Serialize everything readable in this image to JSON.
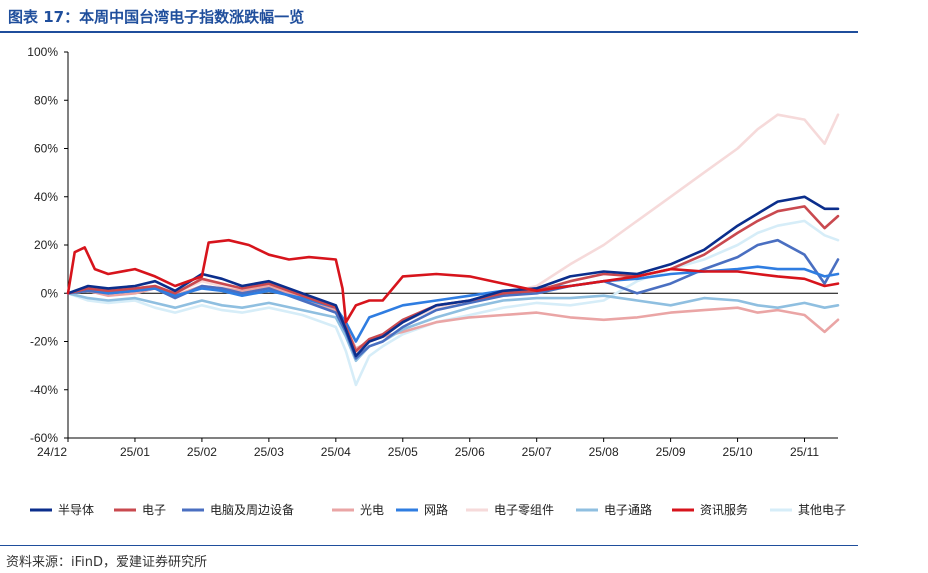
{
  "header": {
    "title": "图表 17：本周中国台湾电子指数涨跌幅一览"
  },
  "footer": {
    "source": "资料来源：iFinD，爱建证券研究所"
  },
  "chart_data": {
    "type": "line",
    "title": "",
    "xlabel": "",
    "ylabel": "",
    "ylim": [
      -60,
      100
    ],
    "y_ticks": [
      -60,
      -40,
      -20,
      0,
      20,
      40,
      60,
      80,
      100
    ],
    "y_tick_labels": [
      "-60%",
      "-40%",
      "-20%",
      "0%",
      "20%",
      "40%",
      "60%",
      "80%",
      "100%"
    ],
    "x_range": [
      0,
      11.5
    ],
    "x_ticks": [
      0,
      1,
      2,
      3,
      4,
      5,
      6,
      7,
      8,
      9,
      10,
      11
    ],
    "x_tick_labels": [
      "24/12",
      "25/01",
      "25/02",
      "25/03",
      "25/04",
      "25/05",
      "25/06",
      "25/07",
      "25/08",
      "25/09",
      "25/10",
      "25/11"
    ],
    "legend_position": "bottom",
    "series": [
      {
        "name": "半导体",
        "color": "#0b2e8c",
        "points": [
          [
            0,
            0
          ],
          [
            0.3,
            3
          ],
          [
            0.6,
            2
          ],
          [
            1,
            3
          ],
          [
            1.3,
            5
          ],
          [
            1.6,
            1
          ],
          [
            2,
            8
          ],
          [
            2.3,
            6
          ],
          [
            2.6,
            3
          ],
          [
            3,
            5
          ],
          [
            3.5,
            0
          ],
          [
            4,
            -5
          ],
          [
            4.15,
            -15
          ],
          [
            4.3,
            -26
          ],
          [
            4.5,
            -20
          ],
          [
            4.7,
            -18
          ],
          [
            5,
            -12
          ],
          [
            5.5,
            -5
          ],
          [
            6,
            -3
          ],
          [
            6.5,
            1
          ],
          [
            7,
            2
          ],
          [
            7.5,
            7
          ],
          [
            8,
            9
          ],
          [
            8.5,
            8
          ],
          [
            9,
            12
          ],
          [
            9.5,
            18
          ],
          [
            10,
            28
          ],
          [
            10.3,
            33
          ],
          [
            10.6,
            38
          ],
          [
            11,
            40
          ],
          [
            11.3,
            35
          ],
          [
            11.5,
            35
          ]
        ]
      },
      {
        "name": "电子",
        "color": "#c9494f",
        "points": [
          [
            0,
            0
          ],
          [
            0.3,
            2
          ],
          [
            0.6,
            1
          ],
          [
            1,
            2
          ],
          [
            1.3,
            3
          ],
          [
            1.6,
            0
          ],
          [
            2,
            6
          ],
          [
            2.3,
            4
          ],
          [
            2.6,
            2
          ],
          [
            3,
            4
          ],
          [
            3.5,
            -1
          ],
          [
            4,
            -6
          ],
          [
            4.15,
            -14
          ],
          [
            4.3,
            -24
          ],
          [
            4.5,
            -19
          ],
          [
            4.7,
            -17
          ],
          [
            5,
            -11
          ],
          [
            5.5,
            -5
          ],
          [
            6,
            -3
          ],
          [
            6.5,
            0
          ],
          [
            7,
            1
          ],
          [
            7.5,
            5
          ],
          [
            8,
            8
          ],
          [
            8.5,
            7
          ],
          [
            9,
            10
          ],
          [
            9.5,
            16
          ],
          [
            10,
            25
          ],
          [
            10.3,
            30
          ],
          [
            10.6,
            34
          ],
          [
            11,
            36
          ],
          [
            11.3,
            27
          ],
          [
            11.5,
            32
          ]
        ]
      },
      {
        "name": "电脑及周边设备",
        "color": "#4a6fc1",
        "points": [
          [
            0,
            0
          ],
          [
            0.3,
            1
          ],
          [
            0.6,
            0
          ],
          [
            1,
            1
          ],
          [
            1.3,
            2
          ],
          [
            1.6,
            -2
          ],
          [
            2,
            3
          ],
          [
            2.3,
            2
          ],
          [
            2.6,
            0
          ],
          [
            3,
            2
          ],
          [
            3.5,
            -3
          ],
          [
            4,
            -8
          ],
          [
            4.15,
            -16
          ],
          [
            4.3,
            -27
          ],
          [
            4.5,
            -22
          ],
          [
            4.7,
            -20
          ],
          [
            5,
            -14
          ],
          [
            5.5,
            -7
          ],
          [
            6,
            -4
          ],
          [
            6.5,
            -1
          ],
          [
            7,
            0
          ],
          [
            7.5,
            3
          ],
          [
            8,
            5
          ],
          [
            8.5,
            0
          ],
          [
            9,
            4
          ],
          [
            9.5,
            10
          ],
          [
            10,
            15
          ],
          [
            10.3,
            20
          ],
          [
            10.6,
            22
          ],
          [
            11,
            16
          ],
          [
            11.3,
            4
          ],
          [
            11.5,
            14
          ]
        ]
      },
      {
        "name": "光电",
        "color": "#eaa5a5",
        "points": [
          [
            0,
            0
          ],
          [
            0.3,
            1
          ],
          [
            0.6,
            -1
          ],
          [
            1,
            0
          ],
          [
            1.3,
            2
          ],
          [
            1.6,
            -1
          ],
          [
            2,
            3
          ],
          [
            2.3,
            2
          ],
          [
            2.6,
            1
          ],
          [
            3,
            3
          ],
          [
            3.5,
            -2
          ],
          [
            4,
            -7
          ],
          [
            4.15,
            -14
          ],
          [
            4.3,
            -23
          ],
          [
            4.5,
            -20
          ],
          [
            4.7,
            -18
          ],
          [
            5,
            -16
          ],
          [
            5.5,
            -12
          ],
          [
            6,
            -10
          ],
          [
            6.5,
            -9
          ],
          [
            7,
            -8
          ],
          [
            7.5,
            -10
          ],
          [
            8,
            -11
          ],
          [
            8.5,
            -10
          ],
          [
            9,
            -8
          ],
          [
            9.5,
            -7
          ],
          [
            10,
            -6
          ],
          [
            10.3,
            -8
          ],
          [
            10.6,
            -7
          ],
          [
            11,
            -9
          ],
          [
            11.3,
            -16
          ],
          [
            11.5,
            -11
          ]
        ]
      },
      {
        "name": "网路",
        "color": "#2f7de1",
        "points": [
          [
            0,
            0
          ],
          [
            0.3,
            2
          ],
          [
            0.6,
            0
          ],
          [
            1,
            1
          ],
          [
            1.3,
            2
          ],
          [
            1.6,
            -1
          ],
          [
            2,
            2
          ],
          [
            2.3,
            1
          ],
          [
            2.6,
            -1
          ],
          [
            3,
            1
          ],
          [
            3.5,
            -2
          ],
          [
            4,
            -6
          ],
          [
            4.15,
            -12
          ],
          [
            4.3,
            -20
          ],
          [
            4.5,
            -10
          ],
          [
            4.7,
            -8
          ],
          [
            5,
            -5
          ],
          [
            5.5,
            -3
          ],
          [
            6,
            -1
          ],
          [
            6.5,
            1
          ],
          [
            7,
            2
          ],
          [
            7.5,
            3
          ],
          [
            8,
            5
          ],
          [
            8.5,
            6
          ],
          [
            9,
            8
          ],
          [
            9.5,
            9
          ],
          [
            10,
            10
          ],
          [
            10.3,
            11
          ],
          [
            10.6,
            10
          ],
          [
            11,
            10
          ],
          [
            11.3,
            7
          ],
          [
            11.5,
            8
          ]
        ]
      },
      {
        "name": "电子零组件",
        "color": "#f6dada",
        "points": [
          [
            0,
            0
          ],
          [
            0.3,
            2
          ],
          [
            0.6,
            1
          ],
          [
            1,
            2
          ],
          [
            1.3,
            3
          ],
          [
            1.6,
            0
          ],
          [
            2,
            5
          ],
          [
            2.3,
            3
          ],
          [
            2.6,
            1
          ],
          [
            3,
            4
          ],
          [
            3.5,
            -1
          ],
          [
            4,
            -6
          ],
          [
            4.15,
            -14
          ],
          [
            4.3,
            -25
          ],
          [
            4.5,
            -20
          ],
          [
            4.7,
            -18
          ],
          [
            5,
            -12
          ],
          [
            5.5,
            -6
          ],
          [
            6,
            -3
          ],
          [
            6.5,
            0
          ],
          [
            7,
            3
          ],
          [
            7.5,
            12
          ],
          [
            8,
            20
          ],
          [
            8.5,
            30
          ],
          [
            9,
            40
          ],
          [
            9.5,
            50
          ],
          [
            10,
            60
          ],
          [
            10.3,
            68
          ],
          [
            10.6,
            74
          ],
          [
            11,
            72
          ],
          [
            11.3,
            62
          ],
          [
            11.5,
            74
          ]
        ]
      },
      {
        "name": "电子通路",
        "color": "#8fbfe0",
        "points": [
          [
            0,
            0
          ],
          [
            0.3,
            -2
          ],
          [
            0.6,
            -3
          ],
          [
            1,
            -2
          ],
          [
            1.3,
            -4
          ],
          [
            1.6,
            -6
          ],
          [
            2,
            -3
          ],
          [
            2.3,
            -5
          ],
          [
            2.6,
            -6
          ],
          [
            3,
            -4
          ],
          [
            3.5,
            -7
          ],
          [
            4,
            -10
          ],
          [
            4.15,
            -18
          ],
          [
            4.3,
            -28
          ],
          [
            4.5,
            -22
          ],
          [
            4.7,
            -20
          ],
          [
            5,
            -15
          ],
          [
            5.5,
            -10
          ],
          [
            6,
            -6
          ],
          [
            6.5,
            -3
          ],
          [
            7,
            -2
          ],
          [
            7.5,
            -2
          ],
          [
            8,
            -1
          ],
          [
            8.5,
            -3
          ],
          [
            9,
            -5
          ],
          [
            9.5,
            -2
          ],
          [
            10,
            -3
          ],
          [
            10.3,
            -5
          ],
          [
            10.6,
            -6
          ],
          [
            11,
            -4
          ],
          [
            11.3,
            -6
          ],
          [
            11.5,
            -5
          ]
        ]
      },
      {
        "name": "资讯服务",
        "color": "#d7141c",
        "points": [
          [
            0,
            0
          ],
          [
            0.1,
            17
          ],
          [
            0.25,
            19
          ],
          [
            0.4,
            10
          ],
          [
            0.6,
            8
          ],
          [
            1,
            10
          ],
          [
            1.3,
            7
          ],
          [
            1.6,
            3
          ],
          [
            2,
            7
          ],
          [
            2.1,
            21
          ],
          [
            2.4,
            22
          ],
          [
            2.7,
            20
          ],
          [
            3,
            16
          ],
          [
            3.3,
            14
          ],
          [
            3.6,
            15
          ],
          [
            4,
            14
          ],
          [
            4.1,
            2
          ],
          [
            4.15,
            -12
          ],
          [
            4.3,
            -5
          ],
          [
            4.5,
            -3
          ],
          [
            4.7,
            -3
          ],
          [
            5,
            7
          ],
          [
            5.5,
            8
          ],
          [
            6,
            7
          ],
          [
            6.5,
            4
          ],
          [
            7,
            1
          ],
          [
            7.5,
            3
          ],
          [
            8,
            5
          ],
          [
            8.5,
            7
          ],
          [
            9,
            10
          ],
          [
            9.5,
            9
          ],
          [
            10,
            9
          ],
          [
            10.3,
            8
          ],
          [
            10.6,
            7
          ],
          [
            11,
            6
          ],
          [
            11.3,
            3
          ],
          [
            11.5,
            4
          ]
        ]
      },
      {
        "name": "其他电子",
        "color": "#d6edf8",
        "points": [
          [
            0,
            0
          ],
          [
            0.3,
            -3
          ],
          [
            0.6,
            -4
          ],
          [
            1,
            -3
          ],
          [
            1.3,
            -6
          ],
          [
            1.6,
            -8
          ],
          [
            2,
            -5
          ],
          [
            2.3,
            -7
          ],
          [
            2.6,
            -8
          ],
          [
            3,
            -6
          ],
          [
            3.5,
            -9
          ],
          [
            4,
            -14
          ],
          [
            4.15,
            -24
          ],
          [
            4.3,
            -38
          ],
          [
            4.5,
            -26
          ],
          [
            4.7,
            -22
          ],
          [
            5,
            -17
          ],
          [
            5.5,
            -12
          ],
          [
            6,
            -9
          ],
          [
            6.5,
            -6
          ],
          [
            7,
            -4
          ],
          [
            7.5,
            -5
          ],
          [
            8,
            -3
          ],
          [
            8.5,
            5
          ],
          [
            9,
            10
          ],
          [
            9.5,
            14
          ],
          [
            10,
            20
          ],
          [
            10.3,
            25
          ],
          [
            10.6,
            28
          ],
          [
            11,
            30
          ],
          [
            11.3,
            24
          ],
          [
            11.5,
            22
          ]
        ]
      }
    ]
  }
}
